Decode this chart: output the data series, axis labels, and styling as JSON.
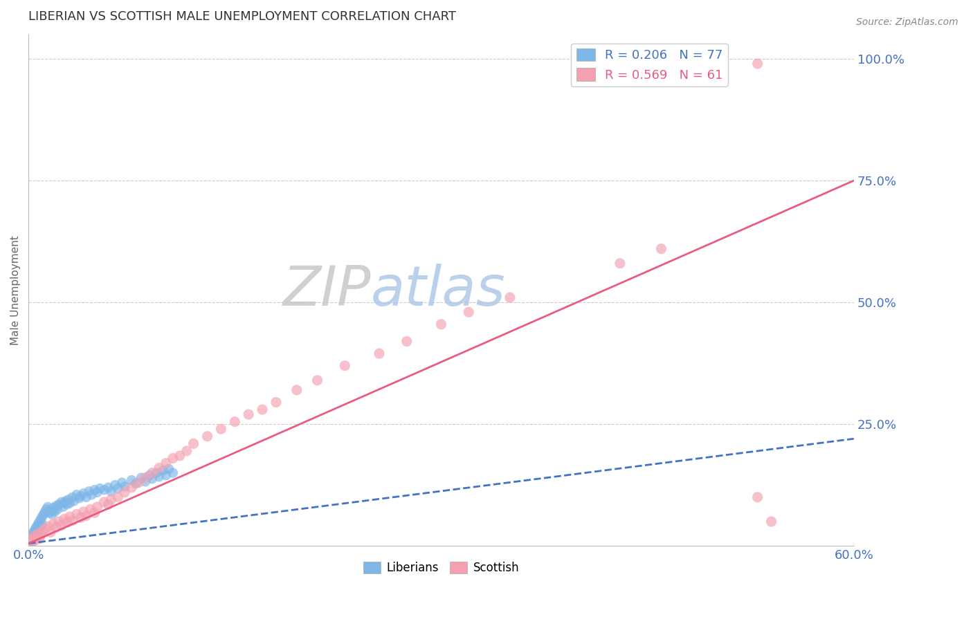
{
  "title": "LIBERIAN VS SCOTTISH MALE UNEMPLOYMENT CORRELATION CHART",
  "source": "Source: ZipAtlas.com",
  "ylabel": "Male Unemployment",
  "xlabel": "",
  "xlim": [
    0.0,
    0.6
  ],
  "ylim": [
    0.0,
    1.05
  ],
  "xticks": [
    0.0,
    0.1,
    0.2,
    0.3,
    0.4,
    0.5,
    0.6
  ],
  "xticklabels": [
    "0.0%",
    "",
    "",
    "",
    "",
    "",
    "60.0%"
  ],
  "yticks": [
    0.0,
    0.25,
    0.5,
    0.75,
    1.0
  ],
  "yticklabels": [
    "",
    "25.0%",
    "50.0%",
    "75.0%",
    "100.0%"
  ],
  "liberian_R": 0.206,
  "liberian_N": 77,
  "scottish_R": 0.569,
  "scottish_N": 61,
  "blue_color": "#7EB6E8",
  "pink_color": "#F4A0B0",
  "blue_line_color": "#4472C4",
  "pink_line_color": "#E85C80",
  "grid_color": "#CCCCCC",
  "title_fontsize": 13,
  "axis_label_color": "#4472C4",
  "background_color": "#FFFFFF",
  "lib_line_x": [
    0.0,
    0.6
  ],
  "lib_line_y": [
    0.005,
    0.22
  ],
  "scot_line_x": [
    0.0,
    0.6
  ],
  "scot_line_y": [
    0.005,
    0.75
  ],
  "lib_scatter_x": [
    0.001,
    0.001,
    0.001,
    0.002,
    0.002,
    0.002,
    0.003,
    0.003,
    0.003,
    0.003,
    0.004,
    0.004,
    0.004,
    0.005,
    0.005,
    0.005,
    0.006,
    0.006,
    0.006,
    0.007,
    0.007,
    0.008,
    0.008,
    0.009,
    0.009,
    0.01,
    0.01,
    0.011,
    0.012,
    0.013,
    0.014,
    0.015,
    0.016,
    0.017,
    0.018,
    0.019,
    0.02,
    0.021,
    0.022,
    0.024,
    0.025,
    0.026,
    0.027,
    0.028,
    0.029,
    0.03,
    0.032,
    0.033,
    0.035,
    0.037,
    0.038,
    0.04,
    0.042,
    0.044,
    0.046,
    0.048,
    0.05,
    0.052,
    0.055,
    0.058,
    0.06,
    0.063,
    0.065,
    0.068,
    0.07,
    0.075,
    0.078,
    0.082,
    0.085,
    0.088,
    0.09,
    0.093,
    0.095,
    0.098,
    0.1,
    0.102,
    0.105
  ],
  "lib_scatter_y": [
    0.01,
    0.015,
    0.005,
    0.02,
    0.012,
    0.008,
    0.018,
    0.025,
    0.01,
    0.015,
    0.022,
    0.03,
    0.018,
    0.035,
    0.025,
    0.015,
    0.04,
    0.028,
    0.02,
    0.045,
    0.032,
    0.05,
    0.038,
    0.055,
    0.042,
    0.06,
    0.045,
    0.065,
    0.07,
    0.075,
    0.08,
    0.068,
    0.072,
    0.065,
    0.078,
    0.07,
    0.082,
    0.075,
    0.085,
    0.09,
    0.08,
    0.088,
    0.092,
    0.085,
    0.095,
    0.088,
    0.1,
    0.092,
    0.105,
    0.098,
    0.102,
    0.108,
    0.1,
    0.112,
    0.105,
    0.115,
    0.11,
    0.118,
    0.115,
    0.12,
    0.112,
    0.125,
    0.118,
    0.13,
    0.122,
    0.135,
    0.128,
    0.14,
    0.132,
    0.145,
    0.138,
    0.15,
    0.142,
    0.155,
    0.145,
    0.158,
    0.15
  ],
  "scot_scatter_x": [
    0.001,
    0.002,
    0.003,
    0.004,
    0.005,
    0.006,
    0.007,
    0.008,
    0.009,
    0.01,
    0.012,
    0.014,
    0.016,
    0.018,
    0.02,
    0.022,
    0.024,
    0.026,
    0.028,
    0.03,
    0.032,
    0.035,
    0.038,
    0.04,
    0.042,
    0.045,
    0.048,
    0.05,
    0.055,
    0.058,
    0.06,
    0.065,
    0.07,
    0.075,
    0.08,
    0.085,
    0.09,
    0.095,
    0.1,
    0.105,
    0.11,
    0.115,
    0.12,
    0.13,
    0.14,
    0.15,
    0.16,
    0.17,
    0.18,
    0.195,
    0.21,
    0.23,
    0.255,
    0.275,
    0.3,
    0.32,
    0.35,
    0.43,
    0.46,
    0.53,
    0.54
  ],
  "scot_scatter_y": [
    0.01,
    0.015,
    0.008,
    0.02,
    0.012,
    0.018,
    0.025,
    0.015,
    0.022,
    0.03,
    0.035,
    0.04,
    0.028,
    0.045,
    0.038,
    0.05,
    0.042,
    0.055,
    0.048,
    0.06,
    0.052,
    0.065,
    0.058,
    0.07,
    0.062,
    0.075,
    0.068,
    0.08,
    0.09,
    0.085,
    0.095,
    0.1,
    0.11,
    0.12,
    0.13,
    0.14,
    0.15,
    0.16,
    0.17,
    0.18,
    0.185,
    0.195,
    0.21,
    0.225,
    0.24,
    0.255,
    0.27,
    0.28,
    0.295,
    0.32,
    0.34,
    0.37,
    0.395,
    0.42,
    0.455,
    0.48,
    0.51,
    0.58,
    0.61,
    0.1,
    0.05
  ],
  "scot_outlier_x": [
    0.53
  ],
  "scot_outlier_y": [
    0.99
  ],
  "watermark_zip_color": "#C8C8CC",
  "watermark_atlas_color": "#B0C8E8"
}
